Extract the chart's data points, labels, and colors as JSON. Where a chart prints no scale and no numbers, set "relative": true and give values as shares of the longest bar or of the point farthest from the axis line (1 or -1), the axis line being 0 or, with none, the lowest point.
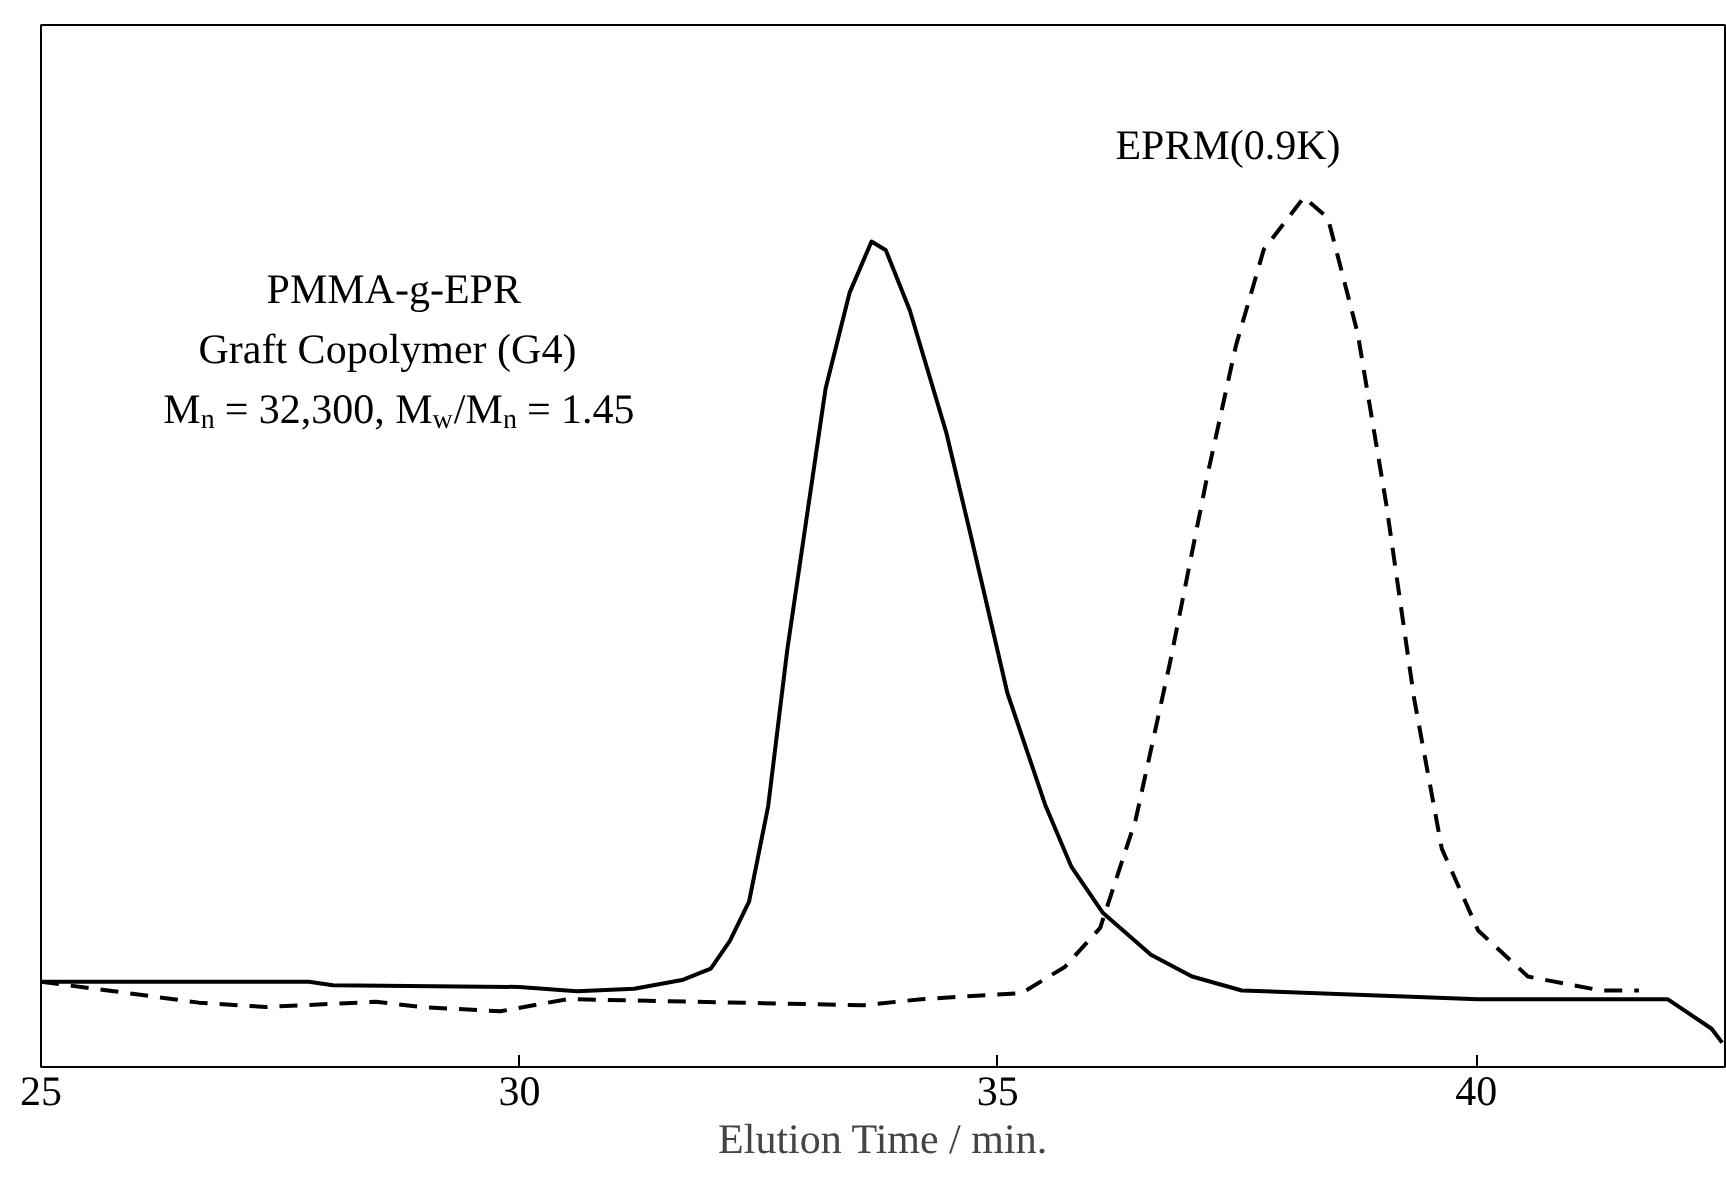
{
  "chart_data": {
    "type": "line",
    "relative": true,
    "xlabel": "Elution Time / min.",
    "xlim": [
      25,
      42.6
    ],
    "xticks": [
      25,
      30,
      35,
      40
    ],
    "grid": false,
    "legend": false,
    "annotations": [
      "PMMA-g-EPR",
      "Graft Copolymer (G4)",
      "M$_{n}$ = 32,300, M$_{w}$/M$_{n}$ = 1.45"
    ],
    "series": [
      {
        "color": "#000000",
        "line_style": "solid",
        "x": [
          25,
          27.8,
          28.05,
          30.0,
          30.6,
          31.2,
          31.7,
          32.0,
          32.2,
          32.4,
          32.6,
          32.8,
          33.0,
          33.2,
          33.45,
          33.68,
          33.83,
          34.08,
          34.46,
          34.72,
          35.1,
          35.5,
          35.77,
          36.1,
          36.6,
          37.03,
          37.55,
          40.02,
          42.0,
          42.46,
          42.57
        ],
        "values": [
          0.098,
          0.098,
          0.094,
          0.092,
          0.087,
          0.09,
          0.1,
          0.113,
          0.145,
          0.19,
          0.3,
          0.48,
          0.63,
          0.78,
          0.89,
          0.949,
          0.939,
          0.87,
          0.73,
          0.61,
          0.43,
          0.3,
          0.23,
          0.177,
          0.129,
          0.104,
          0.088,
          0.078,
          0.078,
          0.044,
          0.028
        ]
      },
      {
        "name": "EPRM(0.9K)",
        "color": "#000000",
        "line_style": "dashed",
        "x": [
          25,
          25.7,
          26.65,
          27.35,
          28.5,
          28.97,
          29.8,
          30.5,
          33.6,
          34.2,
          35.25,
          35.7,
          36.07,
          36.44,
          36.8,
          37.19,
          37.49,
          37.78,
          38.2,
          38.45,
          38.76,
          39.06,
          39.35,
          39.64,
          40.02,
          40.54,
          41.3,
          41.7
        ],
        "values": [
          0.098,
          0.088,
          0.074,
          0.069,
          0.075,
          0.069,
          0.064,
          0.078,
          0.071,
          0.078,
          0.085,
          0.115,
          0.16,
          0.284,
          0.465,
          0.68,
          0.83,
          0.94,
          1.0,
          0.976,
          0.844,
          0.647,
          0.424,
          0.251,
          0.157,
          0.104,
          0.088,
          0.088
        ]
      }
    ]
  }
}
